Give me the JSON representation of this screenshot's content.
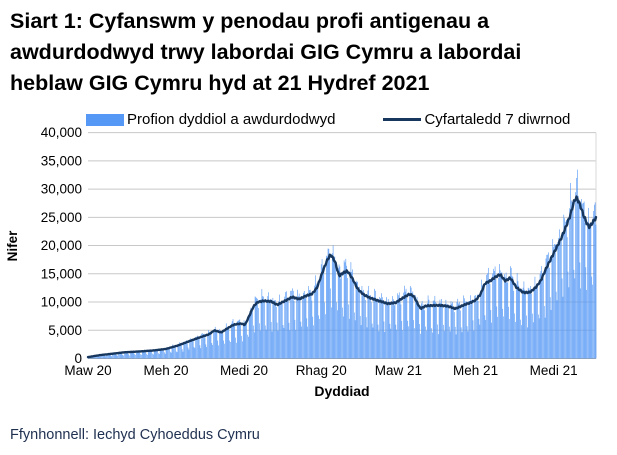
{
  "title": {
    "lines": [
      "Siart 1: Cyfanswm y penodau profi antigenau a",
      "awdurdodwyd trwy labordai GIG Cymru a labordai",
      "heblaw GIG Cymru hyd at 21 Hydref 2021"
    ]
  },
  "legend": {
    "items": [
      {
        "label": "Profion dyddiol a awdurdodwyd"
      },
      {
        "label": "Cyfartaledd 7 diwrnod"
      }
    ]
  },
  "footer": {
    "source": "Ffynhonnell: Iechyd Cyhoeddus Cymru"
  },
  "colors": {
    "bars": "#5598F5",
    "line": "#17375E",
    "grid": "#C8C8C8",
    "zero_axis": "#A6A6A6",
    "right_border": "#D9D9D9",
    "axis_text": "#000000",
    "source_text": "#1F3050"
  },
  "chart_data": {
    "type": "bar",
    "title": "Siart 1: Cyfanswm y penodau profi antigenau a awdurdodwyd trwy labordai GIG Cymru a labordai heblaw GIG Cymru hyd at 21 Hydref 2021",
    "xlabel": "Dyddiad",
    "ylabel": "Nifer",
    "ylim": [
      0,
      40000
    ],
    "ytick_values": [
      0,
      5000,
      10000,
      15000,
      20000,
      25000,
      30000,
      35000,
      40000
    ],
    "ytick_labels": [
      "0",
      "5,000",
      "10,000",
      "15,000",
      "20,000",
      "25,000",
      "30,000",
      "35,000",
      "40,000"
    ],
    "xticks": [
      {
        "day": 0,
        "label": "Maw 20"
      },
      {
        "day": 92,
        "label": "Meh 20"
      },
      {
        "day": 184,
        "label": "Medi 20"
      },
      {
        "day": 275,
        "label": "Rhag 20"
      },
      {
        "day": 366,
        "label": "Maw 21"
      },
      {
        "day": 457,
        "label": "Meh 21"
      },
      {
        "day": 549,
        "label": "Medi 21"
      }
    ],
    "days_total": 600,
    "grid": true,
    "legend_position": "top",
    "series": [
      {
        "name": "Cyfartaledd 7 diwrnod",
        "type": "line",
        "points": [
          [
            0,
            250
          ],
          [
            14,
            600
          ],
          [
            29,
            850
          ],
          [
            43,
            1100
          ],
          [
            61,
            1250
          ],
          [
            79,
            1450
          ],
          [
            92,
            1700
          ],
          [
            106,
            2300
          ],
          [
            120,
            3100
          ],
          [
            131,
            3700
          ],
          [
            143,
            4300
          ],
          [
            149,
            5000
          ],
          [
            157,
            4600
          ],
          [
            164,
            5300
          ],
          [
            172,
            6000
          ],
          [
            181,
            6200
          ],
          [
            185,
            5900
          ],
          [
            190,
            7500
          ],
          [
            195,
            9200
          ],
          [
            200,
            10000
          ],
          [
            208,
            10200
          ],
          [
            216,
            10100
          ],
          [
            223,
            9500
          ],
          [
            231,
            10100
          ],
          [
            241,
            10900
          ],
          [
            249,
            10500
          ],
          [
            257,
            11100
          ],
          [
            264,
            11400
          ],
          [
            270,
            12500
          ],
          [
            277,
            15500
          ],
          [
            282,
            17400
          ],
          [
            286,
            18450
          ],
          [
            291,
            17300
          ],
          [
            296,
            14600
          ],
          [
            300,
            15100
          ],
          [
            306,
            15500
          ],
          [
            312,
            14100
          ],
          [
            318,
            12300
          ],
          [
            325,
            11300
          ],
          [
            333,
            10700
          ],
          [
            343,
            10200
          ],
          [
            354,
            9700
          ],
          [
            363,
            9900
          ],
          [
            371,
            10700
          ],
          [
            379,
            11400
          ],
          [
            384,
            11050
          ],
          [
            392,
            8800
          ],
          [
            398,
            9300
          ],
          [
            407,
            9400
          ],
          [
            417,
            9400
          ],
          [
            426,
            9200
          ],
          [
            433,
            8800
          ],
          [
            442,
            9400
          ],
          [
            451,
            9900
          ],
          [
            457,
            10300
          ],
          [
            463,
            11400
          ],
          [
            468,
            13300
          ],
          [
            475,
            13800
          ],
          [
            481,
            14500
          ],
          [
            486,
            14900
          ],
          [
            492,
            13700
          ],
          [
            498,
            14300
          ],
          [
            505,
            12600
          ],
          [
            513,
            11700
          ],
          [
            521,
            11700
          ],
          [
            528,
            12600
          ],
          [
            534,
            13800
          ],
          [
            540,
            15900
          ],
          [
            546,
            17700
          ],
          [
            552,
            19500
          ],
          [
            558,
            21300
          ],
          [
            564,
            23500
          ],
          [
            569,
            25500
          ],
          [
            573,
            27800
          ],
          [
            576,
            28600
          ],
          [
            580,
            27300
          ],
          [
            584,
            25500
          ],
          [
            588,
            24000
          ],
          [
            591,
            23200
          ],
          [
            595,
            24100
          ],
          [
            599,
            24900
          ]
        ]
      },
      {
        "name": "Profion dyddiol a awdurdodwyd",
        "type": "bar",
        "derivation": "7-day-average interpolated, modulated by weekday pattern (day 0 = Sunday 1 Mar 2020)",
        "weekday_factors": [
          0.5,
          1.06,
          1.12,
          1.09,
          1.04,
          0.98,
          0.62
        ],
        "wobble": [
          0.05,
          2.399,
          0.04,
          0.71
        ],
        "max_daily_observed": 34000,
        "min_clip": 0,
        "max_clip": 35200
      }
    ]
  }
}
